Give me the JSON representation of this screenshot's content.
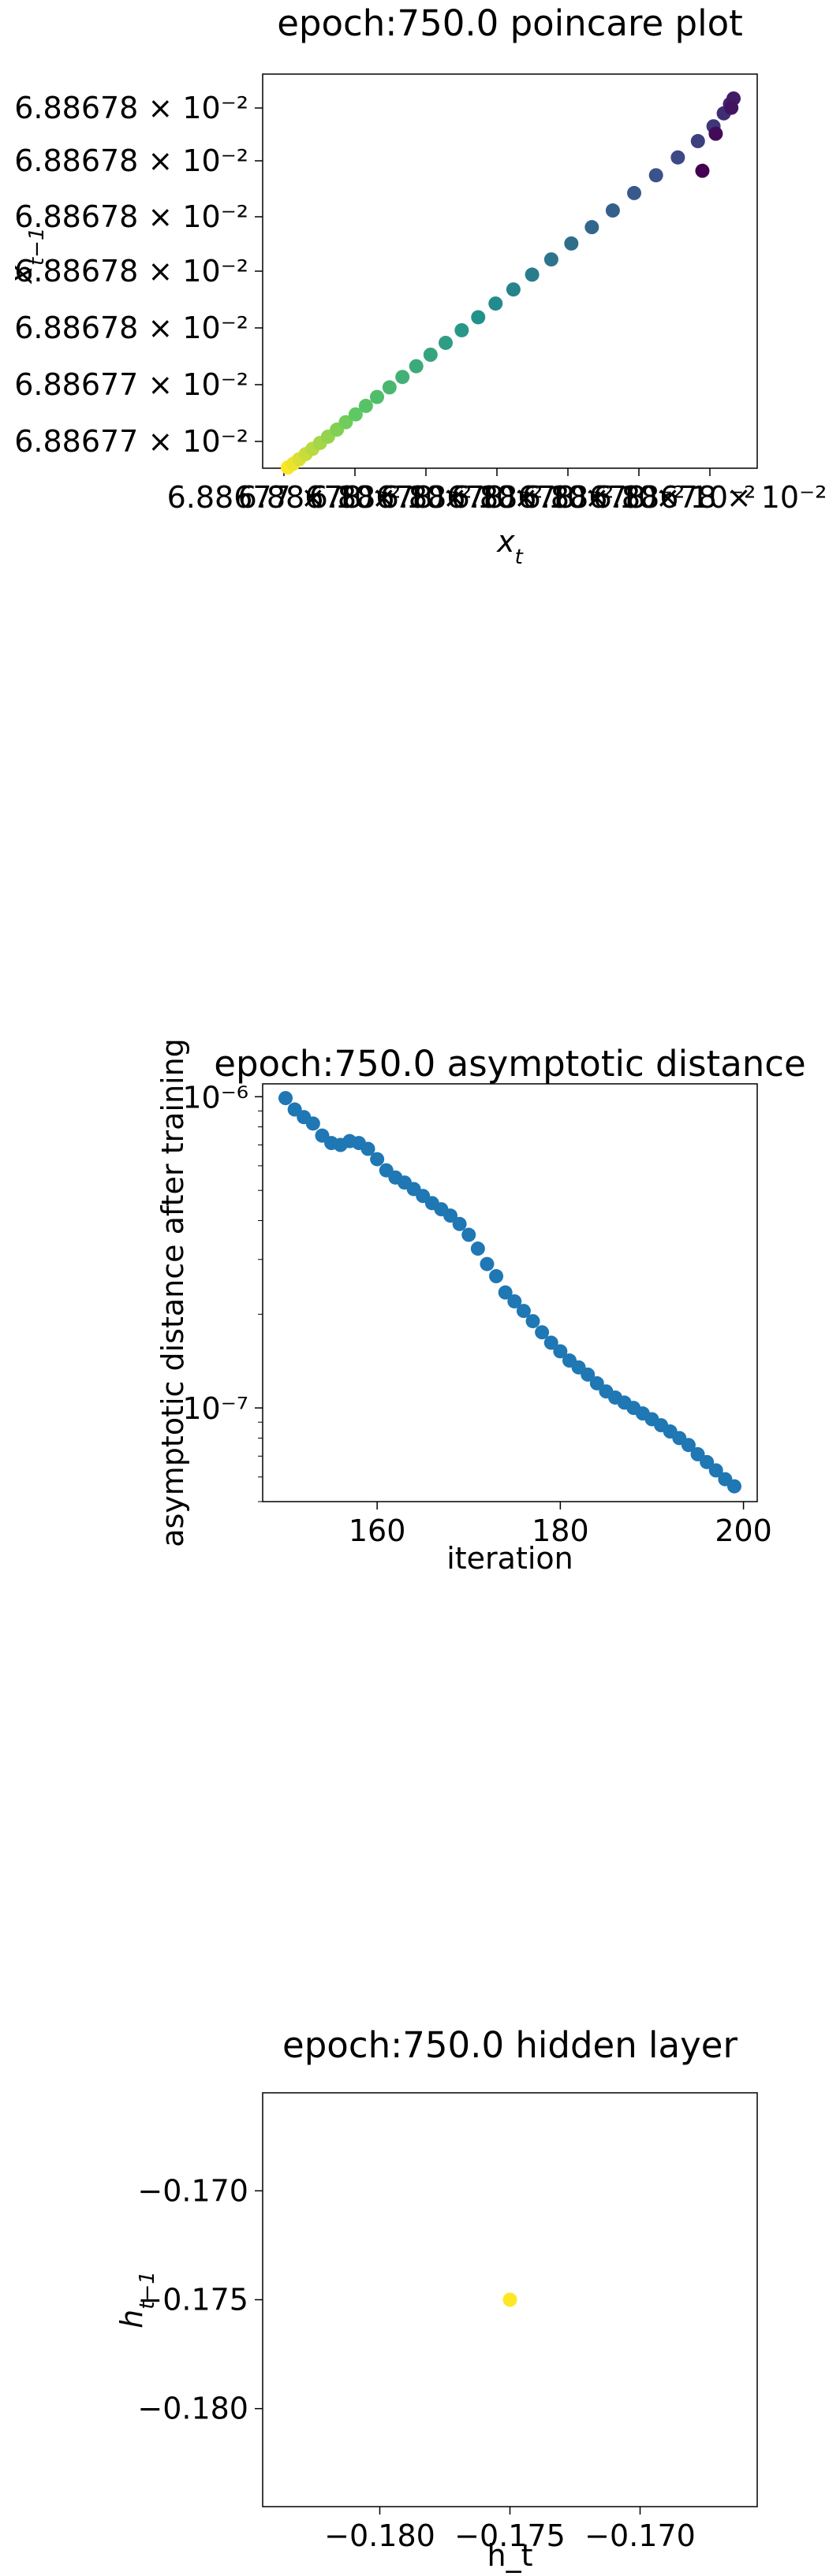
{
  "chart_data": [
    {
      "type": "scatter",
      "title": "epoch:750.0 poincare plot",
      "xlabel_html": "x_t",
      "ylabel_html": "x_{t-1}",
      "ytick_labels": [
        "6.88678 × 10⁻²",
        "6.88678 × 10⁻²",
        "6.88678 × 10⁻²",
        "6.88678 × 10⁻²",
        "6.88678 × 10⁻²",
        "6.88677 × 10⁻²",
        "6.88677 × 10⁻²"
      ],
      "xtick_labels": [
        "6.88677 × 10⁻²",
        "6.88678 × 10⁻²",
        "6.88678 × 10⁻²",
        "6.88678 × 10⁻²",
        "6.88678 × 10⁻²",
        "6.88678 × 10⁻²",
        "6.88678 × 10⁻²"
      ],
      "colormap": "viridis",
      "points_normalized_note_removed": true,
      "x": [
        0.0,
        0.012,
        0.025,
        0.04,
        0.055,
        0.072,
        0.09,
        0.11,
        0.13,
        0.152,
        0.175,
        0.2,
        0.228,
        0.257,
        0.288,
        0.32,
        0.354,
        0.39,
        0.427,
        0.466,
        0.506,
        0.548,
        0.591,
        0.636,
        0.682,
        0.729,
        0.777,
        0.826,
        0.875,
        0.92,
        0.955,
        0.978,
        0.992,
        1.0,
        0.995,
        0.96,
        0.93
      ],
      "y": [
        0.0,
        0.01,
        0.022,
        0.036,
        0.05,
        0.066,
        0.083,
        0.102,
        0.122,
        0.143,
        0.166,
        0.19,
        0.216,
        0.244,
        0.273,
        0.304,
        0.336,
        0.37,
        0.405,
        0.442,
        0.48,
        0.52,
        0.561,
        0.604,
        0.648,
        0.693,
        0.74,
        0.788,
        0.836,
        0.88,
        0.92,
        0.955,
        0.98,
        0.995,
        0.97,
        0.9,
        0.8
      ],
      "color_order": "start-yellow-to-end-purple"
    },
    {
      "type": "scatter",
      "title": "epoch:750.0 asymptotic distance",
      "xlabel": "iteration",
      "ylabel": "asymptotic distance after training",
      "yscale": "log",
      "xlim": [
        147.5,
        201.5
      ],
      "ylim": [
        5e-08,
        1.1e-06
      ],
      "xticks": [
        160,
        180,
        200
      ],
      "yticks": [
        {
          "value": 1e-06,
          "label": "10⁻⁶"
        },
        {
          "value": 1e-07,
          "label": "10⁻⁷"
        }
      ],
      "color": "#1f77b4",
      "x": [
        150,
        151,
        152,
        153,
        154,
        155,
        156,
        157,
        158,
        159,
        160,
        161,
        162,
        163,
        164,
        165,
        166,
        167,
        168,
        169,
        170,
        171,
        172,
        173,
        174,
        175,
        176,
        177,
        178,
        179,
        180,
        181,
        182,
        183,
        184,
        185,
        186,
        187,
        188,
        189,
        190,
        191,
        192,
        193,
        194,
        195,
        196,
        197,
        198,
        199
      ],
      "y": [
        9.9e-07,
        9.1e-07,
        8.6e-07,
        8.2e-07,
        7.5e-07,
        7.1e-07,
        7e-07,
        7.2e-07,
        7.1e-07,
        6.8e-07,
        6.3e-07,
        5.8e-07,
        5.5e-07,
        5.3e-07,
        5.05e-07,
        4.8e-07,
        4.55e-07,
        4.35e-07,
        4.15e-07,
        3.9e-07,
        3.6e-07,
        3.25e-07,
        2.9e-07,
        2.65e-07,
        2.35e-07,
        2.2e-07,
        2.05e-07,
        1.9e-07,
        1.75e-07,
        1.62e-07,
        1.52e-07,
        1.42e-07,
        1.35e-07,
        1.28e-07,
        1.2e-07,
        1.13e-07,
        1.08e-07,
        1.04e-07,
        1e-07,
        9.6e-08,
        9.2e-08,
        8.8e-08,
        8.4e-08,
        8e-08,
        7.6e-08,
        7.1e-08,
        6.7e-08,
        6.3e-08,
        5.9e-08,
        5.6e-08
      ]
    },
    {
      "type": "scatter",
      "title": "epoch:750.0 hidden layer",
      "xlabel": "h_t",
      "ylabel_html": "h_{t-1}",
      "xlim": [
        -0.1845,
        -0.1655
      ],
      "ylim": [
        -0.1845,
        -0.1655
      ],
      "xticks": [
        -0.18,
        -0.175,
        -0.17
      ],
      "yticks": [
        -0.17,
        -0.175,
        -0.18
      ],
      "xtick_labels": [
        "−0.180",
        "−0.175",
        "−0.170"
      ],
      "ytick_labels": [
        "−0.170",
        "−0.175",
        "−0.180"
      ],
      "color": "#fde725",
      "x": [
        -0.175
      ],
      "y": [
        -0.175
      ]
    }
  ]
}
